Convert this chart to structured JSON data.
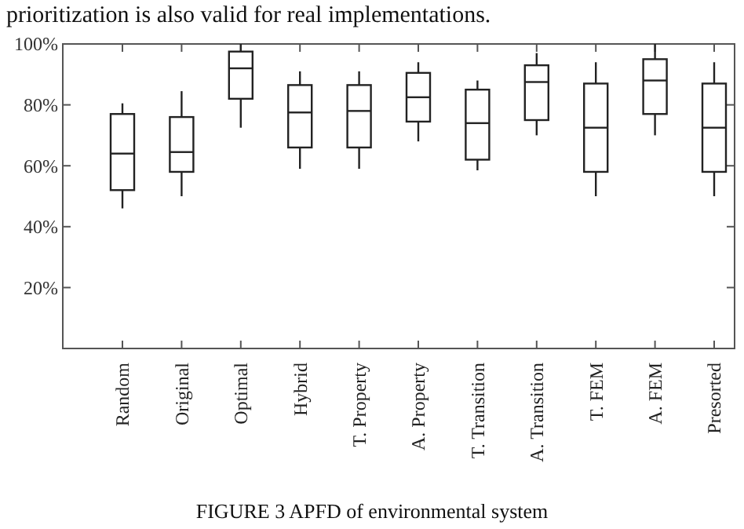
{
  "chart_data": {
    "type": "box",
    "title": "FIGURE 3 APFD of environmental system",
    "annotations": [
      "prioritization is also valid for real implementations."
    ],
    "categories": [
      "Random",
      "Original",
      "Optimal",
      "Hybrid",
      "T. Property",
      "A. Property",
      "T. Transition",
      "A. Transition",
      "T. FEM",
      "A. FEM",
      "Presorted"
    ],
    "boxes": [
      {
        "low": 46,
        "q1": 52,
        "median": 64,
        "q3": 77,
        "high": 80.5
      },
      {
        "low": 50,
        "q1": 58,
        "median": 64.5,
        "q3": 76,
        "high": 84.5
      },
      {
        "low": 72.5,
        "q1": 82,
        "median": 92,
        "q3": 97.5,
        "high": 100
      },
      {
        "low": 59,
        "q1": 66,
        "median": 77.5,
        "q3": 86.5,
        "high": 91
      },
      {
        "low": 59,
        "q1": 66,
        "median": 78,
        "q3": 86.5,
        "high": 91
      },
      {
        "low": 68,
        "q1": 74.5,
        "median": 82.5,
        "q3": 90.5,
        "high": 94
      },
      {
        "low": 58.5,
        "q1": 62,
        "median": 74,
        "q3": 85,
        "high": 88
      },
      {
        "low": 70,
        "q1": 75,
        "median": 87.5,
        "q3": 93,
        "high": 97
      },
      {
        "low": 50,
        "q1": 58,
        "median": 72.5,
        "q3": 87,
        "high": 94
      },
      {
        "low": 70,
        "q1": 77,
        "median": 88,
        "q3": 95,
        "high": 100
      },
      {
        "low": 50,
        "q1": 58,
        "median": 72.5,
        "q3": 87,
        "high": 94
      }
    ],
    "ylim": [
      0,
      100
    ],
    "yticks": [
      {
        "value": 20,
        "label": "20%"
      },
      {
        "value": 40,
        "label": "40%"
      },
      {
        "value": 60,
        "label": "60%"
      },
      {
        "value": 80,
        "label": "80%"
      },
      {
        "value": 100,
        "label": "100%"
      }
    ],
    "grid": false
  }
}
